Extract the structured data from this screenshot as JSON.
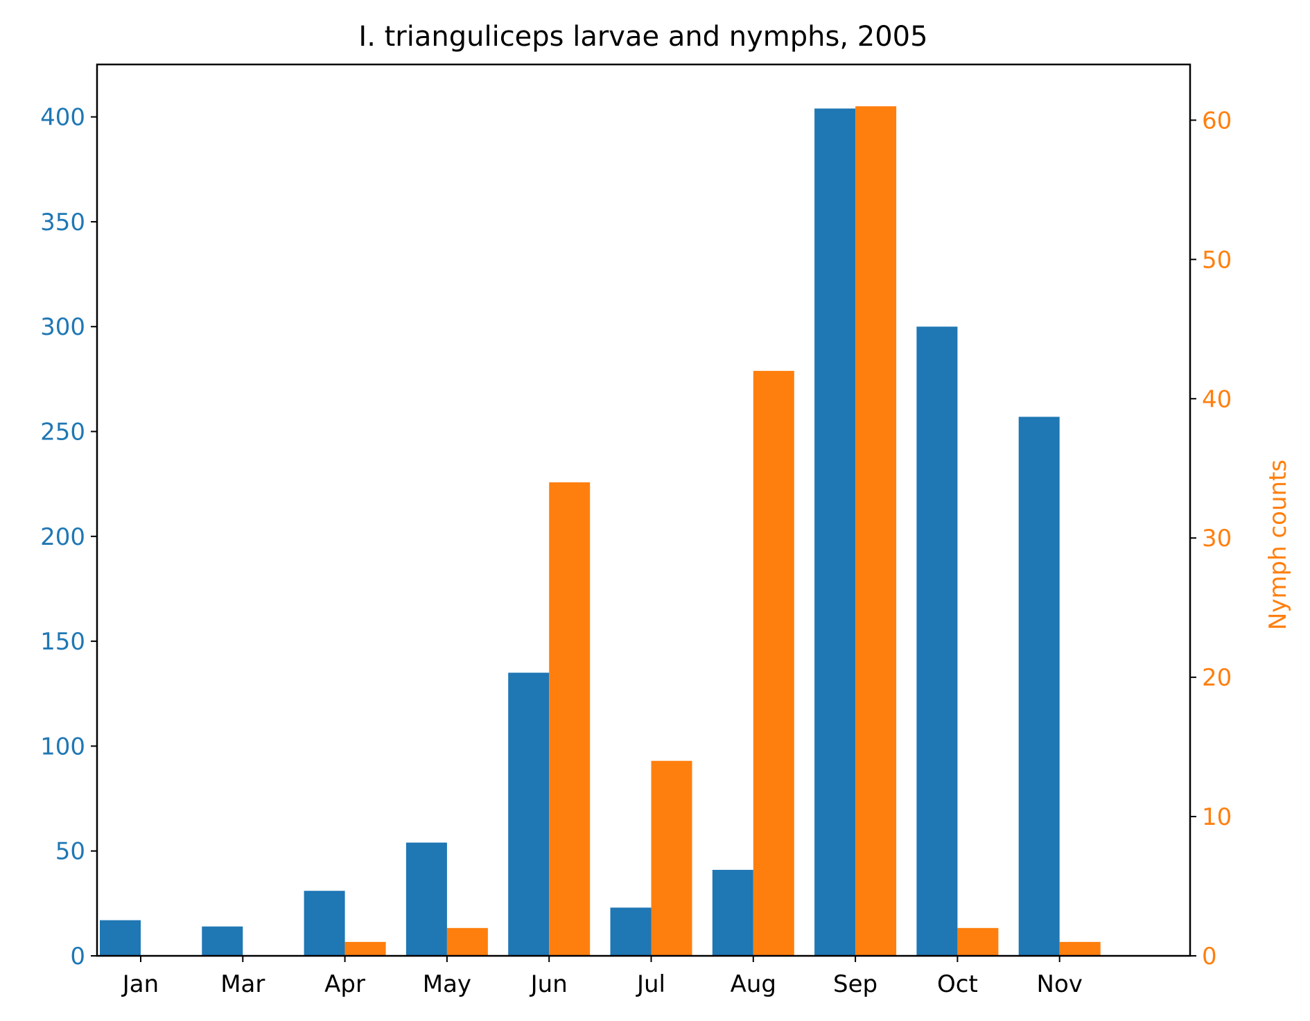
{
  "chart_data": {
    "type": "bar",
    "title": "I. trianguliceps larvae and nymphs, 2005",
    "categories": [
      "Jan",
      "Mar",
      "Apr",
      "May",
      "Jun",
      "Jul",
      "Aug",
      "Sep",
      "Oct",
      "Nov"
    ],
    "series": [
      {
        "axis": "left",
        "color": "#1f77b4",
        "values": [
          17,
          14,
          31,
          54,
          135,
          23,
          41,
          404,
          300,
          257
        ]
      },
      {
        "name": "Nymph counts",
        "axis": "right",
        "color": "#ff7f0e",
        "values": [
          0,
          0,
          1,
          2,
          34,
          14,
          42,
          61,
          2,
          1
        ]
      }
    ],
    "y_left": {
      "label": "",
      "ylim": [
        0,
        425
      ],
      "ticks": [
        0,
        50,
        100,
        150,
        200,
        250,
        300,
        350,
        400
      ],
      "color": "#1f77b4"
    },
    "y_right": {
      "label": "Nymph counts",
      "ylim": [
        0,
        64
      ],
      "ticks": [
        0,
        10,
        20,
        30,
        40,
        50,
        60
      ],
      "color": "#ff7f0e"
    },
    "grid": false,
    "legend": "none"
  }
}
